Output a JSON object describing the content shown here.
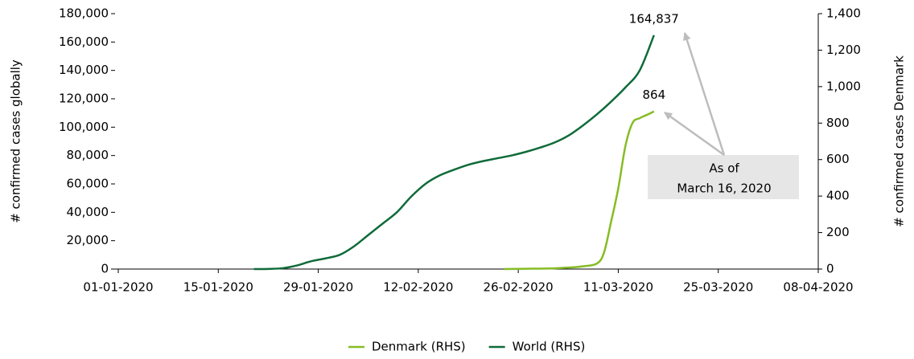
{
  "chart_data": {
    "type": "line",
    "ylabel": "# confirmed cases globally",
    "y2label": "# confirmed cases Denmark",
    "xlim": [
      "2020-01-01",
      "2020-04-08"
    ],
    "xticks": [
      {
        "value": "2020-01-01",
        "label": "01-01-2020"
      },
      {
        "value": "2020-01-15",
        "label": "15-01-2020"
      },
      {
        "value": "2020-01-29",
        "label": "29-01-2020"
      },
      {
        "value": "2020-02-12",
        "label": "12-02-2020"
      },
      {
        "value": "2020-02-26",
        "label": "26-02-2020"
      },
      {
        "value": "2020-03-11",
        "label": "11-03-2020"
      },
      {
        "value": "2020-03-25",
        "label": "25-03-2020"
      },
      {
        "value": "2020-04-08",
        "label": "08-04-2020"
      }
    ],
    "ylim": [
      0,
      180000
    ],
    "yticks": [
      0,
      {
        "value": 20000,
        "label": "20,000"
      },
      {
        "value": 40000,
        "label": "40,000"
      },
      {
        "value": 60000,
        "label": "60,000"
      },
      {
        "value": 80000,
        "label": "80,000"
      },
      {
        "value": 100000,
        "label": "100,000"
      },
      {
        "value": 120000,
        "label": "120,000"
      },
      {
        "value": 140000,
        "label": "140,000"
      },
      {
        "value": 160000,
        "label": "160,000"
      },
      {
        "value": 180000,
        "label": "180,000"
      }
    ],
    "y2lim": [
      0,
      1400
    ],
    "y2ticks": [
      0,
      200,
      400,
      600,
      800,
      {
        "value": 1000,
        "label": "1,000"
      },
      {
        "value": 1200,
        "label": "1,200"
      },
      {
        "value": 1400,
        "label": "1,400"
      }
    ],
    "series": [
      {
        "name": "Denmark (RHS)",
        "color": "#86bc25",
        "axis": "y2",
        "x": [
          "2020-02-24",
          "2020-02-28",
          "2020-03-02",
          "2020-03-04",
          "2020-03-06",
          "2020-03-08",
          "2020-03-09",
          "2020-03-10",
          "2020-03-11",
          "2020-03-12",
          "2020-03-13",
          "2020-03-14",
          "2020-03-15",
          "2020-03-16"
        ],
        "values": [
          0,
          2,
          4,
          8,
          15,
          30,
          90,
          260,
          442,
          674,
          801,
          827,
          845,
          864
        ],
        "value_labels": [
          null,
          null,
          null,
          null,
          null,
          null,
          null,
          null,
          null,
          null,
          null,
          null,
          null,
          "864"
        ]
      },
      {
        "name": "World (RHS)",
        "color": "#0f6b3a",
        "axis": "y",
        "x": [
          "2020-01-20",
          "2020-01-22",
          "2020-01-24",
          "2020-01-26",
          "2020-01-28",
          "2020-01-30",
          "2020-02-01",
          "2020-02-03",
          "2020-02-05",
          "2020-02-07",
          "2020-02-09",
          "2020-02-11",
          "2020-02-13",
          "2020-02-15",
          "2020-02-17",
          "2020-02-19",
          "2020-02-21",
          "2020-02-23",
          "2020-02-25",
          "2020-02-27",
          "2020-02-29",
          "2020-03-02",
          "2020-03-04",
          "2020-03-06",
          "2020-03-08",
          "2020-03-10",
          "2020-03-12",
          "2020-03-14",
          "2020-03-16"
        ],
        "values": [
          0,
          100,
          600,
          2500,
          5500,
          7500,
          10000,
          16000,
          24000,
          32000,
          40000,
          51000,
          60000,
          66000,
          70000,
          73500,
          76000,
          78000,
          80000,
          82500,
          85500,
          89000,
          94000,
          101000,
          109000,
          118000,
          128000,
          140000,
          164837
        ],
        "value_labels": [
          null,
          null,
          null,
          null,
          null,
          null,
          null,
          null,
          null,
          null,
          null,
          null,
          null,
          null,
          null,
          null,
          null,
          null,
          null,
          null,
          null,
          null,
          null,
          null,
          null,
          null,
          null,
          null,
          "164,837"
        ]
      }
    ],
    "note": [
      "As of",
      "March 16, 2020"
    ]
  }
}
